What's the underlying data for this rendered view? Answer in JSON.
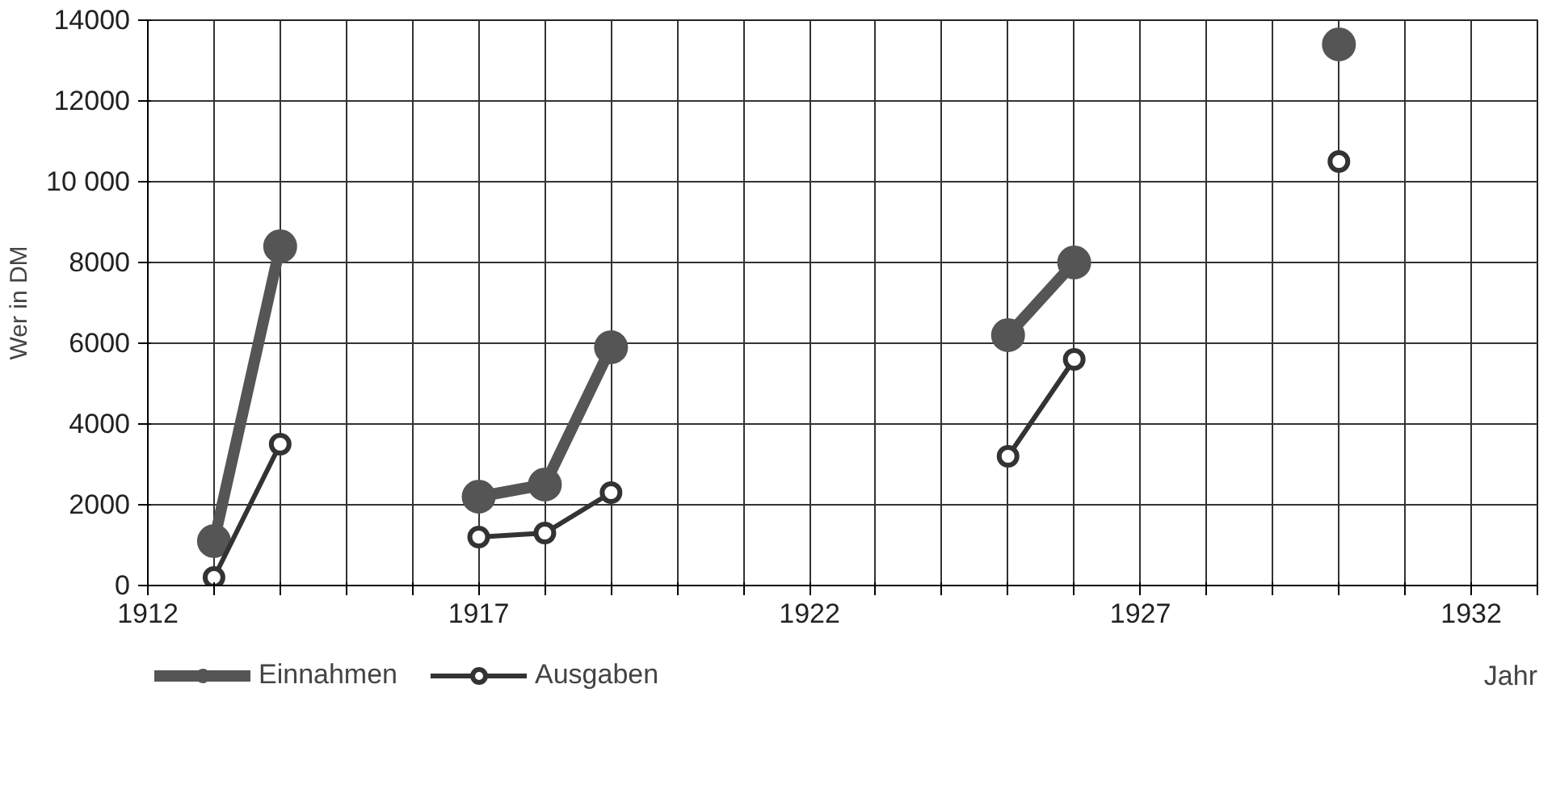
{
  "chart_data": {
    "type": "line",
    "xlabel": "Jahr",
    "ylabel": "Wer in DM",
    "x": [
      1913,
      1914,
      1915,
      1916,
      1917,
      1918,
      1919,
      1920,
      1921,
      1922,
      1923,
      1924,
      1925,
      1926,
      1927,
      1928,
      1929,
      1930
    ],
    "series": [
      {
        "name": "Einnahmen",
        "color": "#555555",
        "values": [
          1100,
          8400,
          null,
          null,
          2200,
          2500,
          5900,
          null,
          null,
          null,
          null,
          null,
          6200,
          8000,
          null,
          null,
          null,
          13400
        ]
      },
      {
        "name": "Ausgaben",
        "color": "#333333",
        "values": [
          200,
          3500,
          null,
          null,
          1200,
          1300,
          2300,
          null,
          null,
          null,
          null,
          null,
          3200,
          5600,
          null,
          null,
          null,
          10500
        ]
      }
    ],
    "xlim": [
      1912,
      1933
    ],
    "ylim": [
      0,
      14000
    ],
    "xticks": [
      1912,
      {
        "value": 1913,
        "label": null
      },
      {
        "value": 1914,
        "label": null
      },
      {
        "value": 1915,
        "label": null
      },
      {
        "value": 1916,
        "label": null
      },
      1917,
      {
        "value": 1918,
        "label": null
      },
      {
        "value": 1919,
        "label": null
      },
      {
        "value": 1920,
        "label": null
      },
      {
        "value": 1921,
        "label": null
      },
      1922,
      {
        "value": 1923,
        "label": null
      },
      {
        "value": 1924,
        "label": null
      },
      {
        "value": 1925,
        "label": null
      },
      {
        "value": 1926,
        "label": null
      },
      1927,
      {
        "value": 1928,
        "label": null
      },
      {
        "value": 1929,
        "label": null
      },
      {
        "value": 1930,
        "label": null
      },
      {
        "value": 1931,
        "label": null
      },
      1932,
      {
        "value": 1933,
        "label": null
      }
    ],
    "yticks": [
      0,
      2000,
      4000,
      6000,
      8000,
      {
        "value": 10000,
        "label": "10 000"
      },
      12000,
      14000
    ],
    "grid": true,
    "legend": "bottom",
    "marker": "circle",
    "line_style": "solid"
  }
}
